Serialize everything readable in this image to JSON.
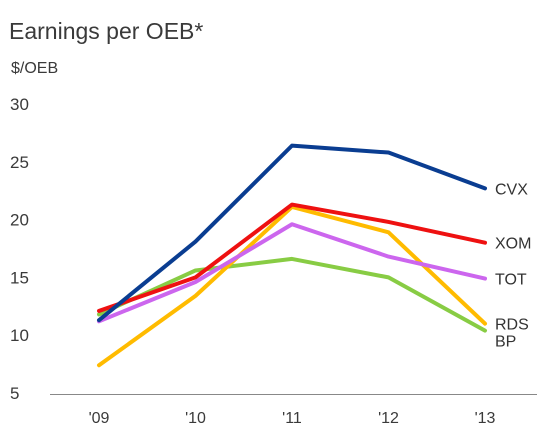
{
  "chart_data": {
    "type": "line",
    "title": "Earnings per OEB*",
    "ylabel": "$/OEB",
    "xlabel": "",
    "categories": [
      "'09",
      "'10",
      "'11",
      "'12",
      "'13"
    ],
    "ylim": [
      5,
      30
    ],
    "yticks": [
      "5",
      "10",
      "15",
      "20",
      "25",
      "30"
    ],
    "grid": false,
    "series": [
      {
        "name": "CVX",
        "color": "#0a3d91",
        "values": [
          11.3,
          18.1,
          26.4,
          25.8,
          22.7
        ]
      },
      {
        "name": "XOM",
        "color": "#ee1111",
        "values": [
          12.1,
          15.0,
          21.3,
          19.8,
          18.0
        ]
      },
      {
        "name": "TOT",
        "color": "#cc66ee",
        "values": [
          11.2,
          14.6,
          19.6,
          16.8,
          14.9
        ]
      },
      {
        "name": "RDS",
        "color": "#ffbb00",
        "values": [
          7.4,
          13.4,
          21.1,
          18.9,
          11.0
        ]
      },
      {
        "name": "BP",
        "color": "#88cc44",
        "values": [
          11.8,
          15.6,
          16.6,
          15.0,
          10.4
        ]
      }
    ]
  }
}
